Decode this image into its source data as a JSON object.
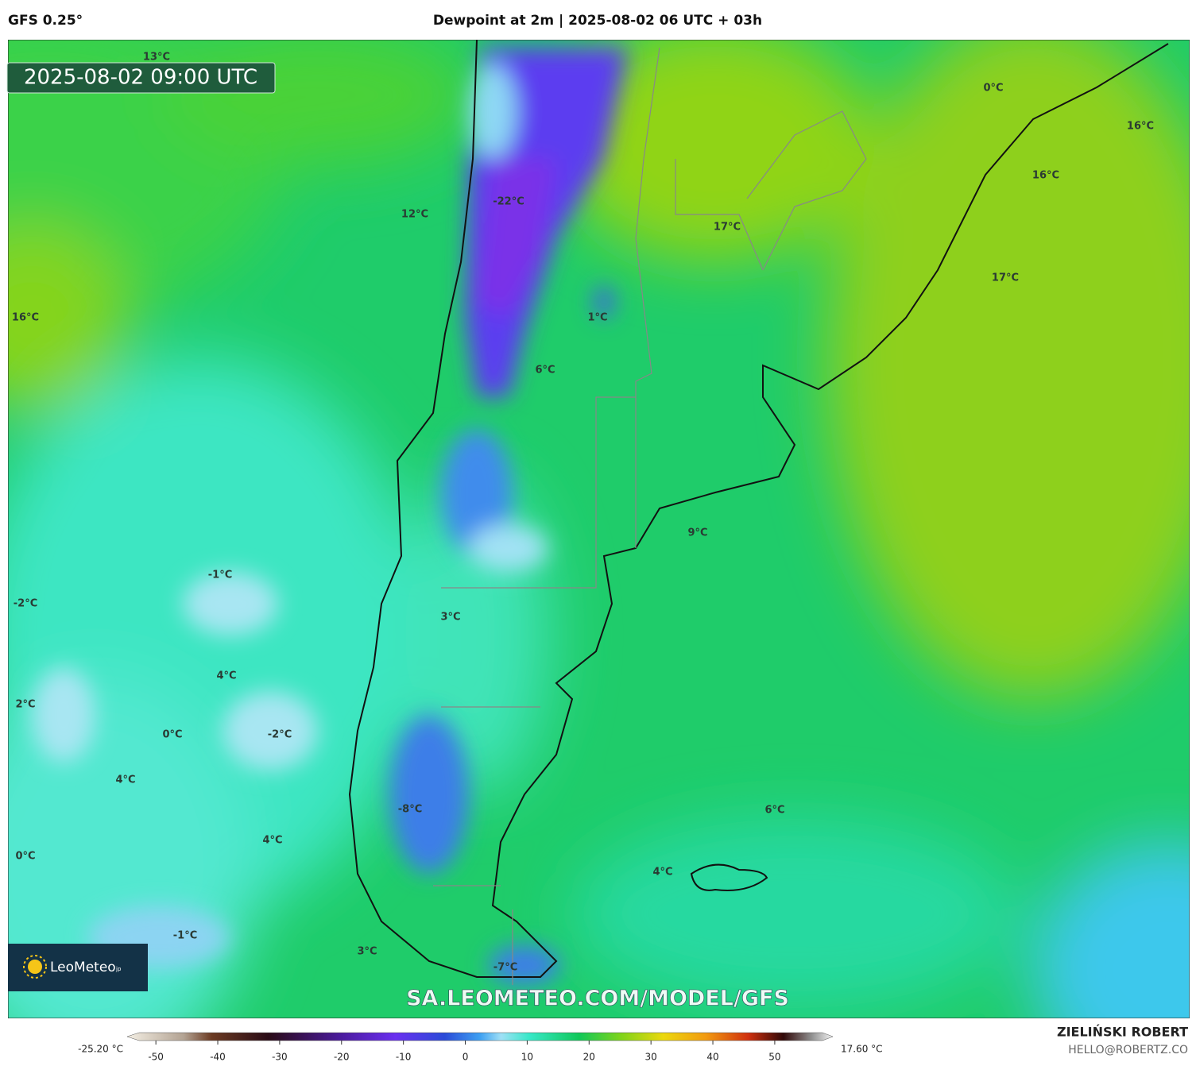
{
  "header": {
    "model": "GFS 0.25°",
    "title": "Dewpoint at 2m | 2025-08-02 06 UTC + 03h"
  },
  "map": {
    "valid_time": "2025-08-02 09:00 UTC",
    "labels": [
      "13°C",
      "12°C",
      "16°C",
      "-22°C",
      "17°C",
      "0°C",
      "16°C",
      "16°C",
      "17°C",
      "1°C",
      "6°C",
      "9°C",
      "-1°C",
      "-2°C",
      "3°C",
      "4°C",
      "2°C",
      "0°C",
      "-2°C",
      "4°C",
      "-8°C",
      "6°C",
      "4°C",
      "0°C",
      "4°C",
      "-1°C",
      "3°C",
      "-7°C"
    ],
    "logo": {
      "name": "LeoMeteo",
      "suffix": "jp"
    },
    "watermark": "SA.LEOMETEO.COM/MODEL/GFS"
  },
  "colorbar": {
    "min_label": "-25.20 °C",
    "max_label": "17.60 °C",
    "range": [
      -54,
      59
    ],
    "ticks": [
      -50,
      -40,
      -30,
      -20,
      -10,
      0,
      10,
      20,
      30,
      40,
      50
    ]
  },
  "footer": {
    "author": "ZIELIŃSKI ROBERT",
    "contact": "HELLO@ROBERTZ.CO"
  }
}
